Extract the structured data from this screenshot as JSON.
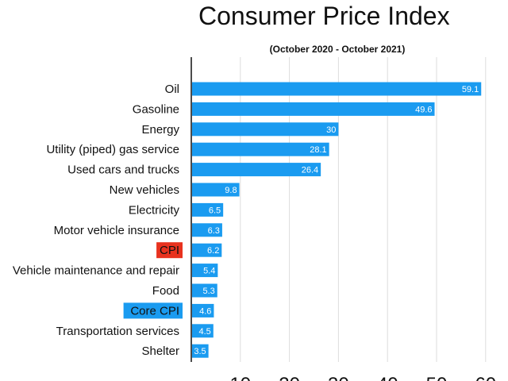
{
  "chart_data": {
    "type": "bar",
    "orientation": "horizontal",
    "title": "Consumer Price Index",
    "subtitle": "(October 2020 - October 2021)",
    "categories": [
      "Oil",
      "Gasoline",
      "Energy",
      "Utility (piped) gas service",
      "Used cars and trucks",
      "New vehicles",
      "Electricity",
      "Motor vehicle insurance",
      "CPI",
      "Vehicle maintenance and repair",
      "Food",
      "Core CPI",
      "Transportation services",
      "Shelter"
    ],
    "values": [
      59.1,
      49.6,
      30,
      28.1,
      26.4,
      9.8,
      6.5,
      6.3,
      6.2,
      5.4,
      5.3,
      4.6,
      4.5,
      3.5
    ],
    "data_labels": [
      "59.1",
      "49.6",
      "30",
      "28.1",
      "26.4",
      "9.8",
      "6.5",
      "6.3",
      "6.2",
      "5.4",
      "5.3",
      "4.6",
      "4.5",
      "3.5"
    ],
    "highlighted_categories": {
      "CPI": "#e8321e",
      "Core CPI": "#1a9bf0"
    },
    "xlim": [
      0,
      60
    ],
    "x_ticks": [
      "10",
      "20",
      "30",
      "40",
      "50",
      "60"
    ],
    "grid": "vertical",
    "legend": "none",
    "bar_color": "#1a9bf0",
    "axis_color": "#111111",
    "grid_color": "#dddddd"
  }
}
